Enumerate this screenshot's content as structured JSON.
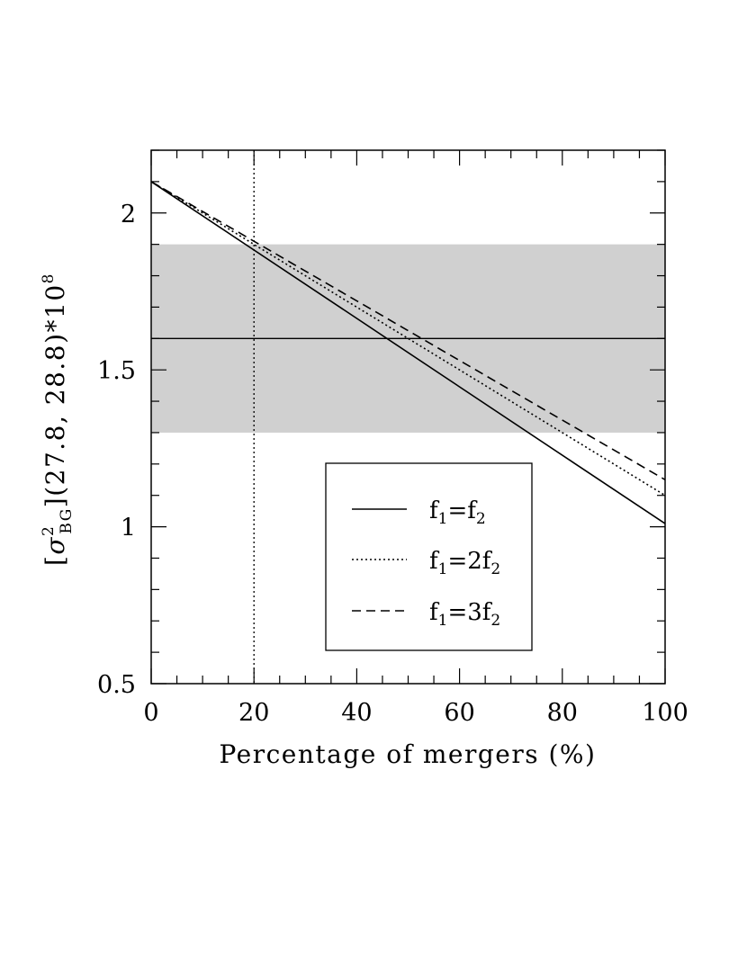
{
  "chart_data": {
    "type": "line",
    "xlabel": "Percentage of mergers (%)",
    "ylabel": {
      "prefix": "[",
      "symbol": "σ",
      "superscript": "2",
      "subscript": "BG",
      "suffix": "](27.8, 28.8)*10",
      "exponent": "8"
    },
    "xlim": [
      0,
      100
    ],
    "ylim": [
      0.5,
      2.2
    ],
    "x_ticks": [
      0,
      20,
      40,
      60,
      80,
      100
    ],
    "x_tick_labels": [
      "0",
      "20",
      "40",
      "60",
      "80",
      "100"
    ],
    "y_ticks": [
      0.5,
      1,
      1.5,
      2
    ],
    "y_tick_labels": [
      "0.5",
      "1",
      "1.5",
      "2"
    ],
    "grid": false,
    "series": [
      {
        "name": "f1=f2",
        "style": "solid",
        "x": [
          0,
          100
        ],
        "y": [
          2.1,
          1.01
        ]
      },
      {
        "name": "f1=2f2",
        "style": "dotted",
        "x": [
          0,
          100
        ],
        "y": [
          2.1,
          1.1
        ]
      },
      {
        "name": "f1=3f2",
        "style": "dashed",
        "x": [
          0,
          100
        ],
        "y": [
          2.1,
          1.15
        ]
      }
    ],
    "observed_band": {
      "y_range": [
        1.3,
        1.9
      ],
      "color": "#d0d0d0"
    },
    "observed_value": 1.6,
    "vertical_marker": {
      "x": 20,
      "style": "dotted"
    },
    "legend": {
      "position": "lower-right",
      "entries": [
        {
          "series": 0,
          "main": "f",
          "sub1": "1",
          "eq": "=",
          "coef": "",
          "var": "f",
          "sub2": "2"
        },
        {
          "series": 1,
          "main": "f",
          "sub1": "1",
          "eq": "=",
          "coef": "2",
          "var": "f",
          "sub2": "2"
        },
        {
          "series": 2,
          "main": "f",
          "sub1": "1",
          "eq": "=",
          "coef": "3",
          "var": "f",
          "sub2": "2"
        }
      ]
    }
  }
}
